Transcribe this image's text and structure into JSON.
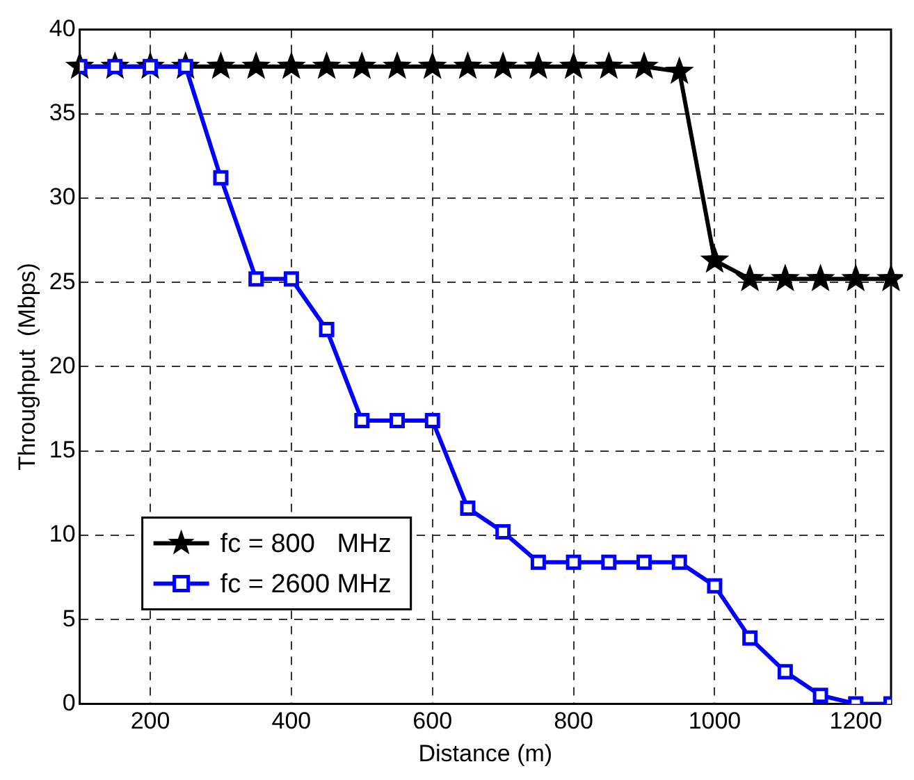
{
  "chart_data": {
    "type": "line",
    "xlabel": "Distance (m)",
    "ylabel": "Throughput  (Mbps)",
    "x": [
      100,
      150,
      200,
      250,
      300,
      350,
      400,
      450,
      500,
      550,
      600,
      650,
      700,
      750,
      800,
      850,
      900,
      950,
      1000,
      1050,
      1100,
      1150,
      1200,
      1250
    ],
    "series": [
      {
        "name": "fc = 800   MHz",
        "color": "#000000",
        "marker": "star",
        "values": [
          37.8,
          37.8,
          37.8,
          37.8,
          37.8,
          37.8,
          37.8,
          37.8,
          37.8,
          37.8,
          37.8,
          37.8,
          37.8,
          37.8,
          37.8,
          37.8,
          37.8,
          37.5,
          26.3,
          25.2,
          25.2,
          25.2,
          25.2,
          25.2
        ]
      },
      {
        "name": "fc = 2600 MHz",
        "color": "#0000ff",
        "marker": "square",
        "values": [
          37.8,
          37.8,
          37.8,
          37.8,
          31.2,
          25.2,
          25.2,
          22.2,
          16.8,
          16.8,
          16.8,
          11.6,
          10.2,
          8.4,
          8.4,
          8.4,
          8.4,
          8.4,
          7.0,
          3.9,
          1.9,
          0.5,
          0.0,
          0.0
        ]
      }
    ],
    "xlim": [
      100,
      1250
    ],
    "xticks": [
      200,
      400,
      600,
      800,
      1000,
      1200
    ],
    "ylim": [
      0,
      40
    ],
    "yticks": [
      0,
      5,
      10,
      15,
      20,
      25,
      30,
      35,
      40
    ],
    "grid": true,
    "legend": "bottom left",
    "line_style": "solid"
  }
}
